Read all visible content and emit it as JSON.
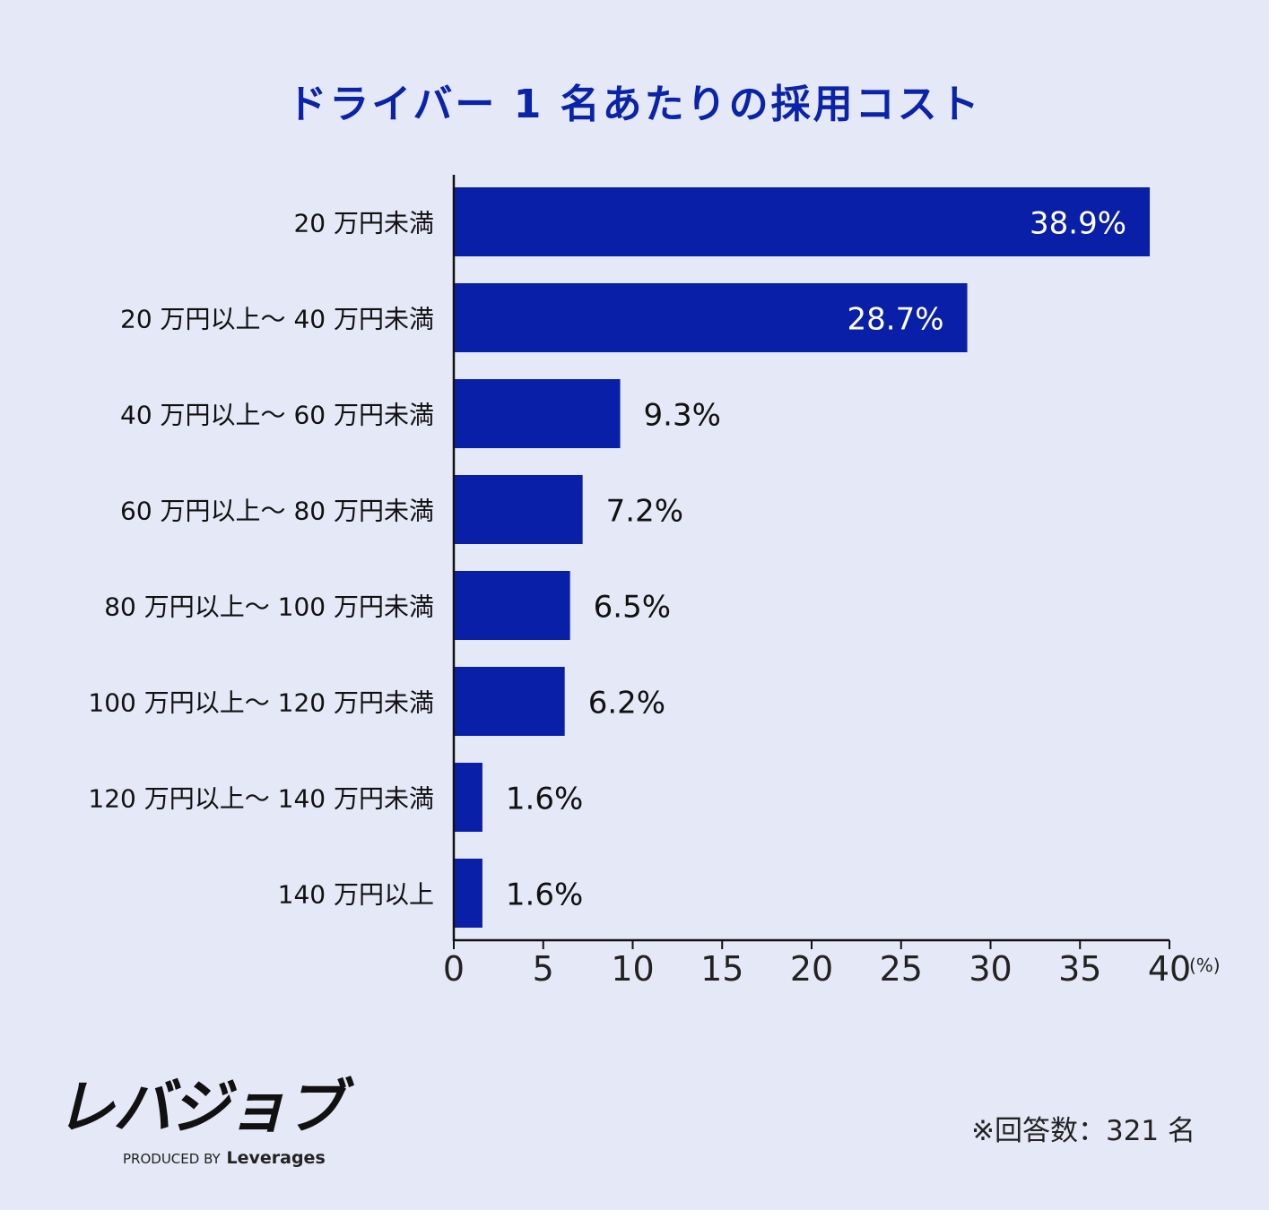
{
  "chart_data": {
    "type": "bar",
    "orientation": "horizontal",
    "title": "ドライバー 1 名あたりの採用コスト",
    "categories": [
      "20 万円未満",
      "20 万円以上〜 40 万円未満",
      "40 万円以上〜 60 万円未満",
      "60 万円以上〜 80 万円未満",
      "80 万円以上〜 100 万円未満",
      "100 万円以上〜 120 万円未満",
      "120 万円以上〜 140 万円未満",
      "140 万円以上"
    ],
    "values": [
      38.9,
      28.7,
      9.3,
      7.2,
      6.5,
      6.2,
      1.6,
      1.6
    ],
    "value_labels": [
      "38.9%",
      "28.7%",
      "9.3%",
      "7.2%",
      "6.5%",
      "6.2%",
      "1.6%",
      "1.6%"
    ],
    "xlim": [
      0,
      40
    ],
    "xticks": [
      "0",
      "5",
      "10",
      "15",
      "20",
      "25",
      "30",
      "35",
      "40"
    ],
    "x_unit": "(%)",
    "grid": false,
    "bar_color": "#0a1fa8"
  },
  "brand": {
    "logo_text": "レバジョブ",
    "produced_by": "PRODUCED BY",
    "company": "Leverages"
  },
  "note": "※回答数：321 名"
}
